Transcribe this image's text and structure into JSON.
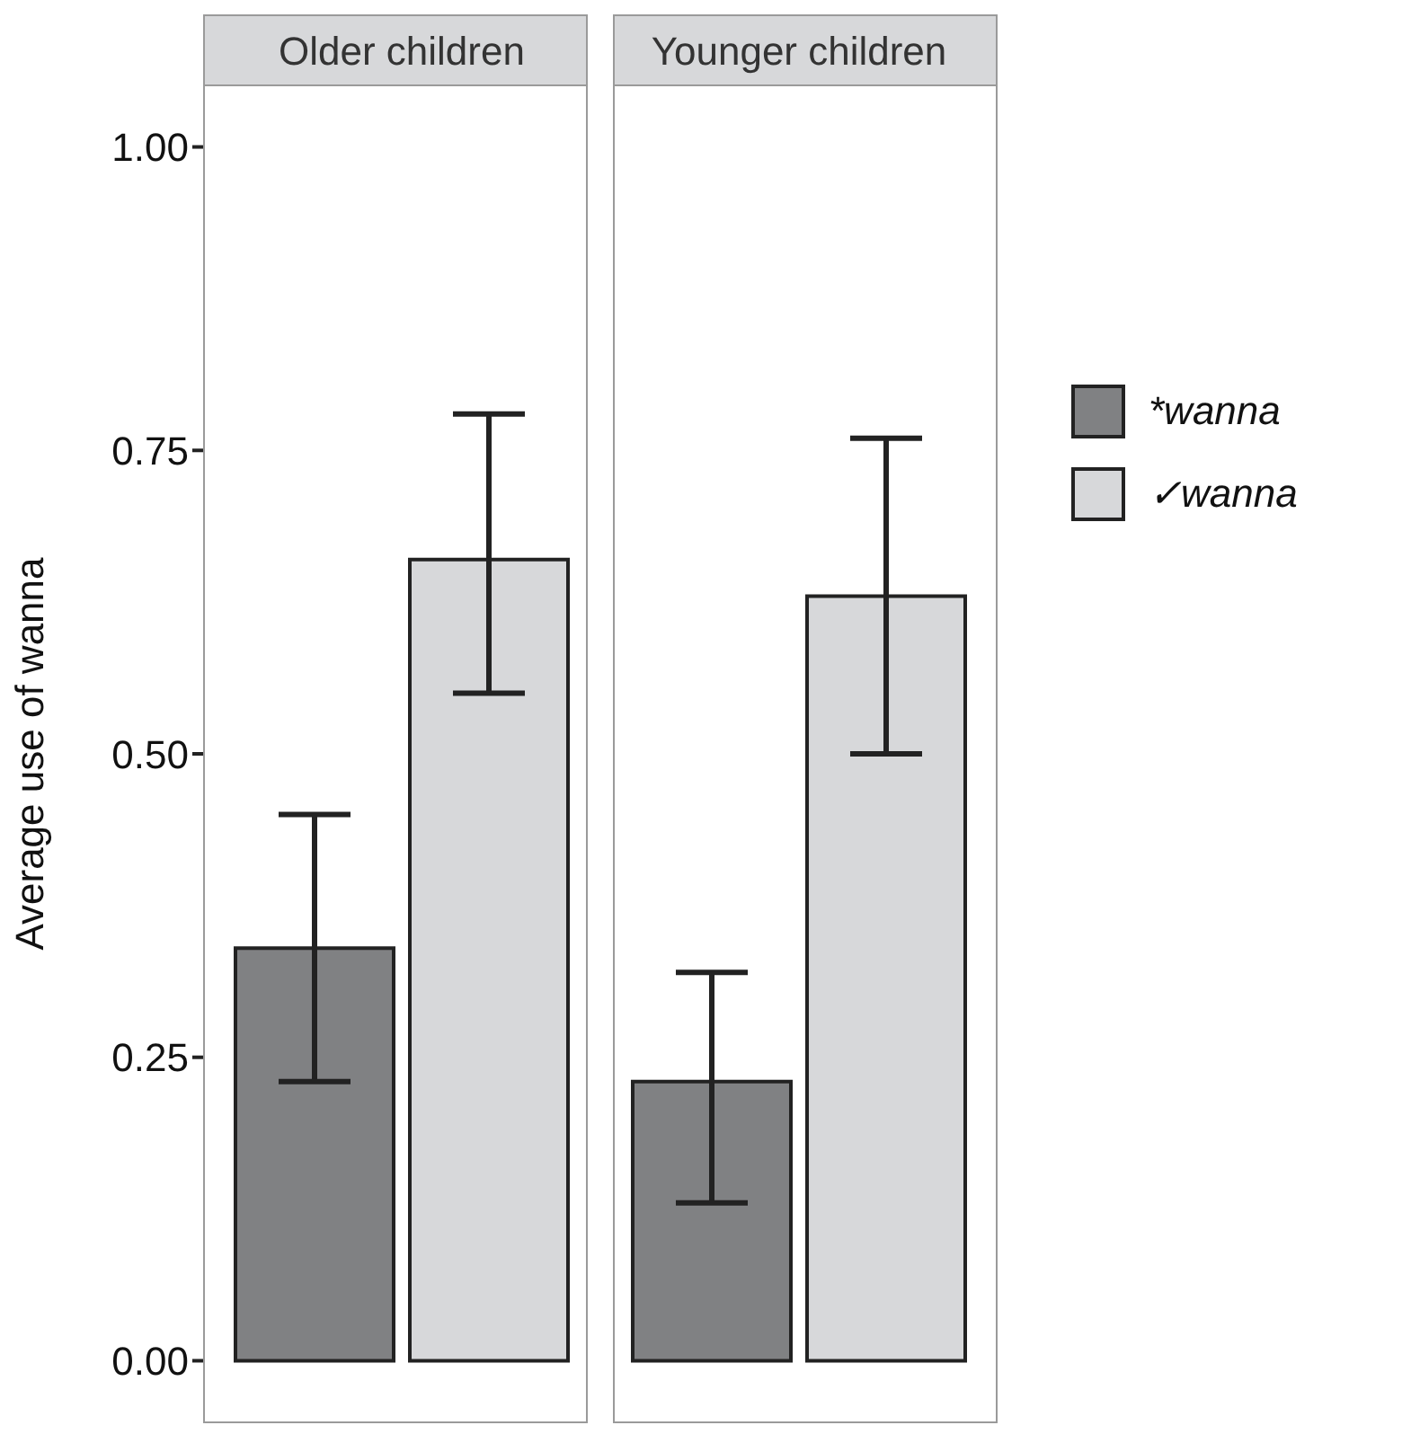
{
  "chart_data": {
    "type": "bar",
    "ylabel": "Average use of wanna",
    "categories": [
      "Older children",
      "Younger children"
    ],
    "series": [
      {
        "name": "*wanna",
        "color": "#808183",
        "values": [
          0.34,
          0.23
        ],
        "errors": [
          [
            0.23,
            0.45
          ],
          [
            0.13,
            0.32
          ]
        ]
      },
      {
        "name": "✓wanna",
        "color": "#d7d8da",
        "values": [
          0.66,
          0.63
        ],
        "errors": [
          [
            0.55,
            0.78
          ],
          [
            0.5,
            0.76
          ]
        ]
      }
    ],
    "ylim": [
      -0.05,
      1.05
    ],
    "yticks": [
      {
        "value": 0,
        "label": "0.00"
      },
      {
        "value": 0.25,
        "label": "0.25"
      },
      {
        "value": 0.5,
        "label": "0.50"
      },
      {
        "value": 0.75,
        "label": "0.75"
      },
      {
        "value": 1,
        "label": "1.00"
      }
    ],
    "grid": false,
    "legend": "right"
  }
}
